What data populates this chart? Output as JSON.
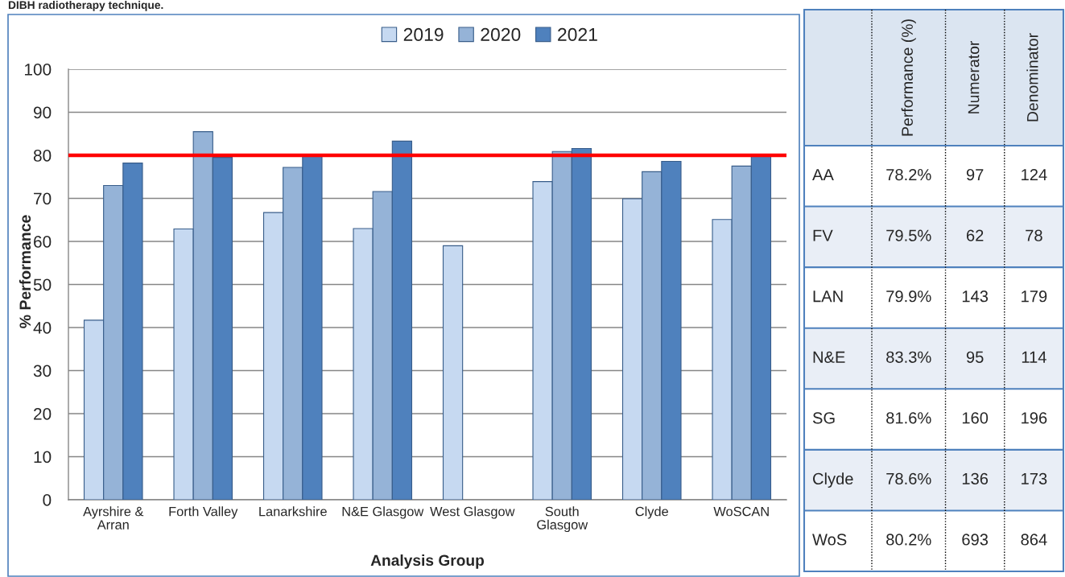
{
  "chart_data": [
    {
      "type": "bar",
      "title": "DIBH radiotherapy technique.",
      "xlabel": "Analysis Group",
      "ylabel": "% Performance",
      "categories": [
        "Ayrshire & Arran",
        "Forth Valley",
        "Lanarkshire",
        "N&E Glasgow",
        "West Glasgow",
        "South Glasgow",
        "Clyde",
        "WoSCAN"
      ],
      "series": [
        {
          "name": "2019",
          "color": "#c6d9f1",
          "values": [
            41.7,
            62.9,
            66.7,
            63.0,
            59.0,
            73.9,
            69.9,
            65.1
          ]
        },
        {
          "name": "2020",
          "color": "#95b3d7",
          "values": [
            73.0,
            85.5,
            77.2,
            71.6,
            null,
            80.9,
            76.2,
            77.5
          ]
        },
        {
          "name": "2021",
          "color": "#4f81bd",
          "values": [
            78.2,
            79.5,
            79.9,
            83.3,
            null,
            81.6,
            78.6,
            80.2
          ]
        }
      ],
      "ylim": [
        0,
        100
      ],
      "yticks": [
        0,
        10,
        20,
        30,
        40,
        50,
        60,
        70,
        80,
        90,
        100
      ],
      "grid": "y",
      "legend": "top",
      "ref_lines": [
        {
          "axis": "y",
          "value": 80,
          "color": "#ff0000"
        }
      ]
    },
    {
      "type": "other",
      "categories": [
        "Performance (%)",
        "Numerator",
        "Denominator"
      ],
      "y_categories": [
        "AA",
        "FV",
        "LAN",
        "N&E",
        "SG",
        "Clyde",
        "WoS"
      ],
      "cell_labels": [
        [
          "78.2%",
          "97",
          "124"
        ],
        [
          "79.5%",
          "62",
          "78"
        ],
        [
          "79.9%",
          "143",
          "179"
        ],
        [
          "83.3%",
          "95",
          "114"
        ],
        [
          "81.6%",
          "160",
          "196"
        ],
        [
          "78.6%",
          "136",
          "173"
        ],
        [
          "80.2%",
          "693",
          "864"
        ]
      ]
    }
  ]
}
